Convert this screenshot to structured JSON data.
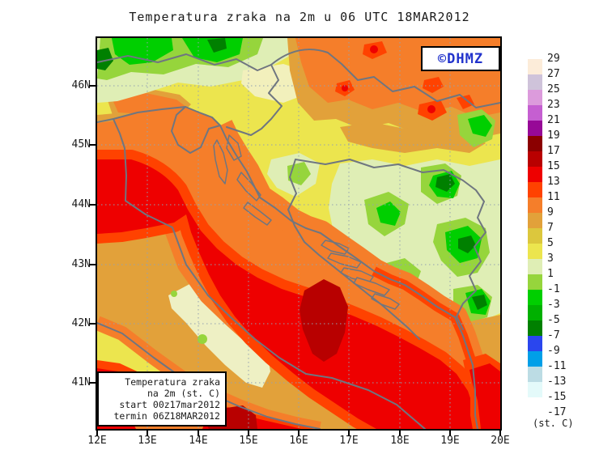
{
  "title": "Temperatura zraka na 2m u 06 UTC 18MAR2012",
  "badge": {
    "label": "©DHMZ",
    "color": "#2233cc"
  },
  "info_box": {
    "lines": [
      "Temperatura zraka",
      "na 2m (st. C)",
      "start 00z17mar2012",
      "termin 06Z18MAR2012"
    ]
  },
  "axes": {
    "lat_labels": [
      "46N",
      "45N",
      "44N",
      "43N",
      "42N",
      "41N"
    ],
    "lon_labels": [
      "12E",
      "13E",
      "14E",
      "15E",
      "16E",
      "17E",
      "18E",
      "19E",
      "20E"
    ]
  },
  "colorbar": {
    "unit": "(st. C)",
    "tick_labels": [
      "29",
      "27",
      "25",
      "23",
      "21",
      "19",
      "17",
      "15",
      "13",
      "11",
      "9",
      "7",
      "5",
      "3",
      "1",
      "-1",
      "-3",
      "-5",
      "-7",
      "-9",
      "-11",
      "-13",
      "-15",
      "-17"
    ],
    "band_colors": [
      "#fcecd9",
      "#cfc3da",
      "#dc9bdc",
      "#c55fd1",
      "#970997",
      "#8b0000",
      "#b90000",
      "#ee0000",
      "#ff4200",
      "#f57e2a",
      "#e2a13a",
      "#dcc73d",
      "#ece54e",
      "#dfeeb5",
      "#96d53c",
      "#00cf00",
      "#00b000",
      "#008000",
      "#2a46ee",
      "#009fe8",
      "#bcdce4",
      "#e4fafa",
      "#ffffff"
    ]
  }
}
